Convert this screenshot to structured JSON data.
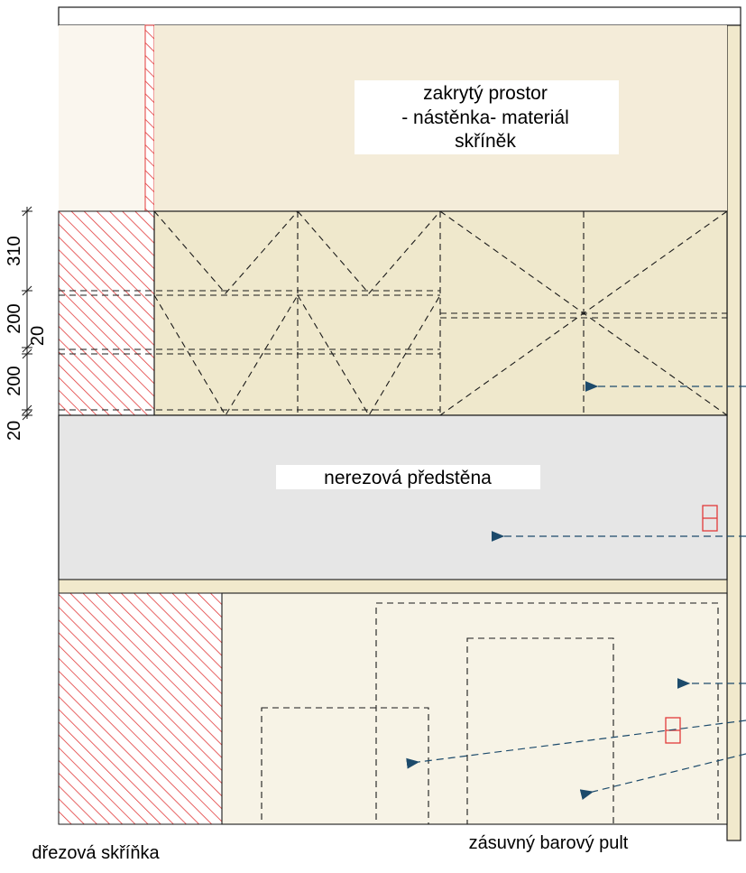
{
  "labels": {
    "covered_space_line1": "zakrytý prostor",
    "covered_space_line2": "- nástěnka- materiál",
    "covered_space_line3": "skříněk",
    "stainless_wall": "nerezová předstěna",
    "sink_cabinet": "dřezová skříňka",
    "bar_counter": "zásuvný barový pult"
  },
  "dimensions": {
    "d1": "310",
    "d2": "200",
    "d3": "20",
    "d4": "200",
    "d5": "20"
  },
  "colors": {
    "hatch": "#e23b3b",
    "upper_fill": "#f4ecd9",
    "cabinet_fill": "#efe8cc",
    "stainless_fill": "#e6e6e6",
    "lower_fill": "#f7f3e6",
    "arrow": "#1c4a6b",
    "outline": "#1a1a1a"
  }
}
